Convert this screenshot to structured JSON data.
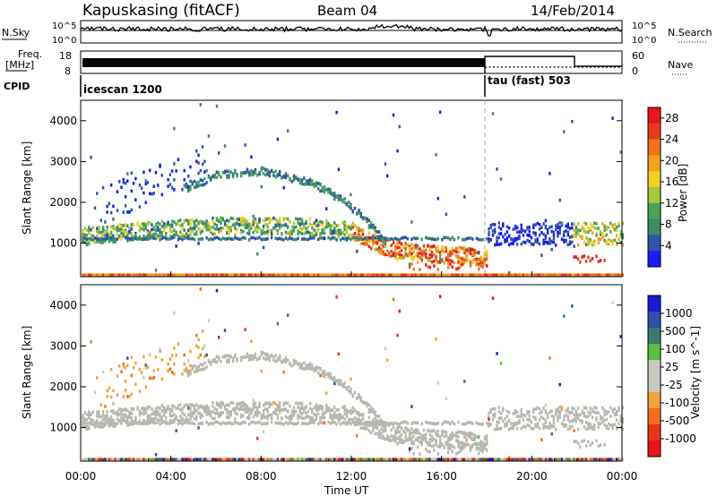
{
  "header": {
    "station": "Kapuskasing (fitACF)",
    "beam": "Beam 04",
    "date": "14/Feb/2014"
  },
  "top_panels": {
    "nsky_label": "N.Sky",
    "nsky_ticks": [
      "10^5",
      "10^0"
    ],
    "nsearch_label": "N.Search",
    "nsearch_ticks": [
      "10^5",
      "10^0"
    ],
    "freq_label": "Freq.",
    "freq_unit": "[MHz]",
    "freq_ticks": [
      "18",
      "8"
    ],
    "nave_label": "Nave",
    "nave_ticks": [
      "60",
      "0"
    ],
    "cpid_label": "CPID",
    "cpid_segments": [
      {
        "label": "icescan 1200",
        "start_ut": 0,
        "end_ut": 18
      },
      {
        "label": "tau (fast) 503",
        "start_ut": 18,
        "end_ut": 24
      }
    ]
  },
  "colors": {
    "power_scale": [
      "#1a1aff",
      "#2d55a8",
      "#3f8a6a",
      "#46a558",
      "#a6c83a",
      "#f2d21e",
      "#f6a21c",
      "#f2711d",
      "#e83a1b",
      "#e8141b"
    ],
    "velocity_scale": [
      "#1a1ad8",
      "#2f4fa8",
      "#3b7a6c",
      "#59c040",
      "#c8c8c0",
      "#c8c8c0",
      "#f2a23a",
      "#f26d1d",
      "#e8341b",
      "#e8141b"
    ],
    "ground_scatter": "#b8b8b0"
  },
  "chart_data": [
    {
      "type": "heatmap",
      "title": "Beam 04",
      "xlabel": "Time UT",
      "ylabel": "Slant Range [km]",
      "x_ticks": [
        "00:00",
        "04:00",
        "08:00",
        "12:00",
        "16:00",
        "20:00",
        "00:00"
      ],
      "xlim_hours": [
        0,
        24
      ],
      "ylim": [
        180,
        4500
      ],
      "y_ticks": [
        1000,
        2000,
        3000,
        4000
      ],
      "colorbar_label": "Power [dB]",
      "colorbar_ticks": [
        "4",
        "8",
        "12",
        "16",
        "20",
        "24",
        "28"
      ],
      "colorbar_range": [
        0,
        30
      ],
      "features": [
        {
          "name": "main band",
          "t": [
            0,
            2,
            4,
            6,
            8,
            10,
            12,
            13,
            14,
            16,
            18
          ],
          "range_km": [
            1150,
            1250,
            1350,
            1400,
            1400,
            1380,
            1300,
            1000,
            800,
            700,
            650
          ]
        },
        {
          "name": "dome arc",
          "t": [
            4.5,
            6,
            8,
            10,
            11.5,
            12.5,
            13.5
          ],
          "range_km": [
            2300,
            2650,
            2750,
            2500,
            2100,
            1600,
            1000
          ]
        },
        {
          "name": "near band",
          "t": [
            0,
            6,
            12,
            18,
            24
          ],
          "range_km": [
            1100,
            1100,
            1050,
            1050,
            1150
          ]
        }
      ]
    },
    {
      "type": "heatmap",
      "title": "Beam 04",
      "xlabel": "Time UT",
      "ylabel": "Slant Range [km]",
      "x_ticks": [
        "00:00",
        "04:00",
        "08:00",
        "12:00",
        "16:00",
        "20:00",
        "00:00"
      ],
      "xlim_hours": [
        0,
        24
      ],
      "ylim": [
        180,
        4500
      ],
      "y_ticks": [
        1000,
        2000,
        3000,
        4000
      ],
      "colorbar_label": "Velocity [m s^-1]",
      "colorbar_ticks": [
        "1000",
        "500",
        "100",
        "25",
        "-25",
        "-100",
        "-500",
        "-1000"
      ]
    }
  ]
}
